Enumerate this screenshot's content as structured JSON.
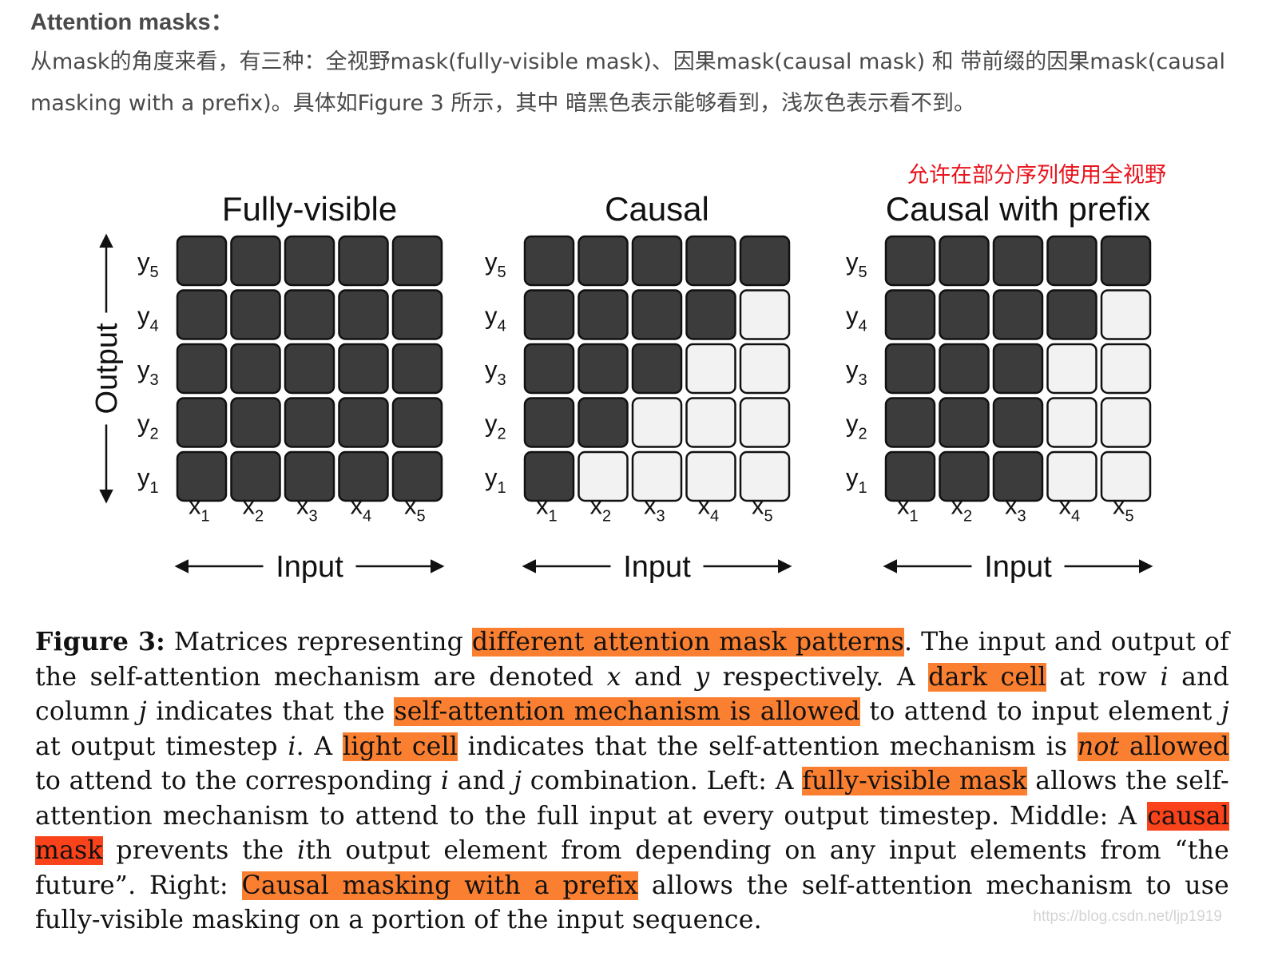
{
  "header": {
    "title": "Attention masks：",
    "body": "从mask的角度来看，有三种：全视野mask(fully-visible mask)、因果mask(causal mask) 和 带前缀的因果mask(causal masking with a prefix)。具体如Figure 3 所示，其中 暗黑色表示能够看到，浅灰色表示看不到。"
  },
  "figure": {
    "annotation": "允许在部分序列使用全视野",
    "output_label": "Output",
    "input_label": "Input",
    "y_labels": [
      "y5",
      "y4",
      "y3",
      "y2",
      "y1"
    ],
    "x_labels": [
      "x1",
      "x2",
      "x3",
      "x4",
      "x5"
    ],
    "colors": {
      "dark": "#3c3c3c",
      "light": "#f2f2f2",
      "annotation": "#e8131b"
    },
    "panels": [
      {
        "title": "Fully-visible",
        "show_output_axis": true,
        "grid": [
          [
            1,
            1,
            1,
            1,
            1
          ],
          [
            1,
            1,
            1,
            1,
            1
          ],
          [
            1,
            1,
            1,
            1,
            1
          ],
          [
            1,
            1,
            1,
            1,
            1
          ],
          [
            1,
            1,
            1,
            1,
            1
          ]
        ]
      },
      {
        "title": "Causal",
        "show_output_axis": false,
        "grid": [
          [
            1,
            1,
            1,
            1,
            1
          ],
          [
            1,
            1,
            1,
            1,
            0
          ],
          [
            1,
            1,
            1,
            0,
            0
          ],
          [
            1,
            1,
            0,
            0,
            0
          ],
          [
            1,
            0,
            0,
            0,
            0
          ]
        ]
      },
      {
        "title": "Causal with prefix",
        "show_output_axis": false,
        "grid": [
          [
            1,
            1,
            1,
            1,
            1
          ],
          [
            1,
            1,
            1,
            1,
            0
          ],
          [
            1,
            1,
            1,
            0,
            0
          ],
          [
            1,
            1,
            1,
            0,
            0
          ],
          [
            1,
            1,
            1,
            0,
            0
          ]
        ]
      }
    ]
  },
  "caption": {
    "label": "Figure 3:",
    "t1": " Matrices representing ",
    "h1": "different attention mask patterns",
    "t2": ". The input and output of the self-attention mechanism are denoted ",
    "v_x": "x",
    "t3": " and ",
    "v_y": "y",
    "t4": " respectively. A ",
    "h2": "dark cell",
    "t5": " at row ",
    "v_i1": "i",
    "t6": " and column ",
    "v_j1": "j",
    "t7": " indicates that the ",
    "h3": "self-attention mechanism is allowed",
    "t8": " to attend to input element ",
    "v_j2": "j",
    "t9": " at output timestep ",
    "v_i2": "i",
    "t10": ". A ",
    "h4": "light cell",
    "t11": " indicates that the self-attention mechanism is ",
    "h5a": "not",
    "h5b": " allowed",
    "t12": " to attend to the corresponding ",
    "v_i3": "i",
    "t13": " and ",
    "v_j3": "j",
    "t14": " combination. Left: A ",
    "h6": "fully-visible mask",
    "t15": " allows the self-attention mechanism to attend to the full input at every output timestep. Middle: A ",
    "h7": "causal mask",
    "t16": " prevents the ",
    "v_i4": "i",
    "t17": "th output element from depending on any input elements from “the future”. Right: ",
    "h8": "Causal masking with a prefix",
    "t18": " allows the self-attention mechanism to use fully-visible masking on a portion of the input sequence."
  },
  "watermark": "https://blog.csdn.net/ljp1919"
}
